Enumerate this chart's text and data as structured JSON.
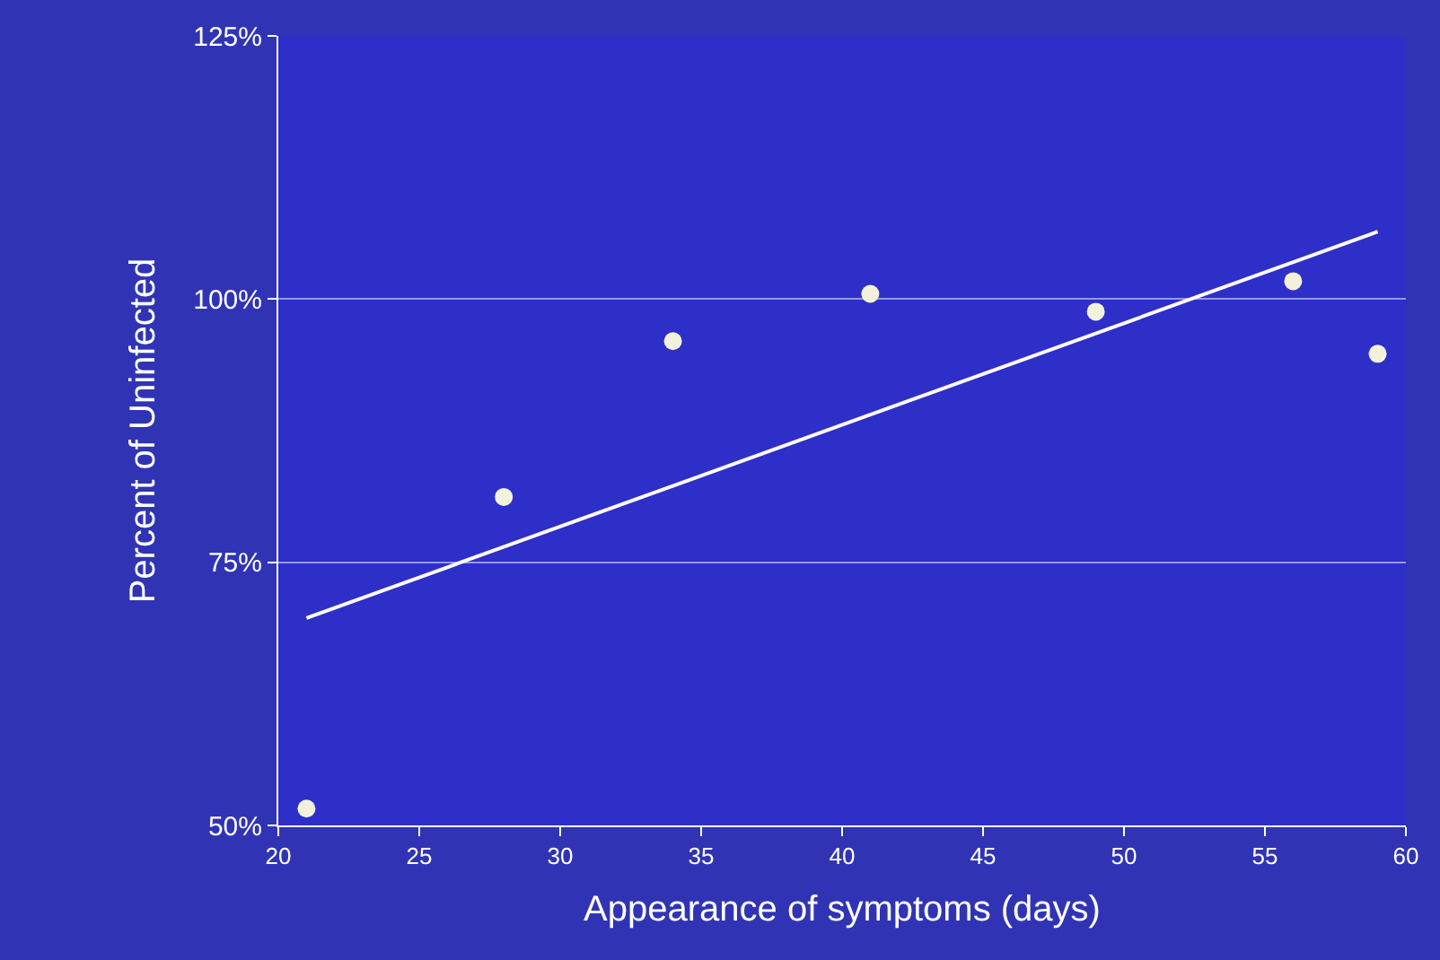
{
  "chart_data": {
    "type": "scatter",
    "xlabel": "Appearance of symptoms (days)",
    "ylabel": "Percent of Uninfected",
    "x": [
      21,
      28,
      34,
      41,
      49,
      56,
      59
    ],
    "series": [
      {
        "color": "#f2f2dc",
        "marker": "circle",
        "values": [
          51.6,
          81.2,
          96.0,
          100.5,
          98.8,
          101.7,
          94.8
        ]
      },
      {
        "type": "line",
        "color": "#ffffff",
        "marker": "none",
        "line_style": "solid",
        "x": [
          21,
          59
        ],
        "values": [
          69.7,
          106.4
        ]
      }
    ],
    "xlim": [
      20,
      60
    ],
    "xticks": [
      20,
      25,
      30,
      35,
      40,
      45,
      50,
      55,
      60
    ],
    "ylim": [
      50,
      125
    ],
    "yticks": [
      {
        "value": 50,
        "label": "50%"
      },
      {
        "value": 75,
        "label": "75%"
      },
      {
        "value": 100,
        "label": "100%"
      },
      {
        "value": 125,
        "label": "125%"
      }
    ],
    "grid": "y"
  }
}
